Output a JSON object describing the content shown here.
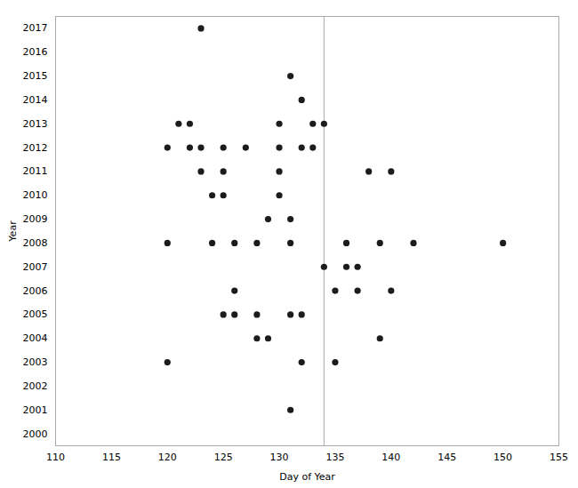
{
  "chart_data": {
    "type": "scatter",
    "x": [
      123,
      131,
      132,
      121,
      122,
      130,
      133,
      134,
      120,
      122,
      123,
      125,
      127,
      130,
      132,
      133,
      123,
      125,
      130,
      138,
      140,
      124,
      125,
      130,
      129,
      131,
      120,
      124,
      126,
      128,
      131,
      136,
      139,
      142,
      150,
      134,
      136,
      137,
      126,
      135,
      137,
      140,
      125,
      126,
      128,
      131,
      132,
      128,
      129,
      139,
      120,
      132,
      135,
      131
    ],
    "values": [
      2017,
      2015,
      2014,
      2013,
      2013,
      2013,
      2013,
      2013,
      2012,
      2012,
      2012,
      2012,
      2012,
      2012,
      2012,
      2012,
      2011,
      2011,
      2011,
      2011,
      2011,
      2010,
      2010,
      2010,
      2009,
      2009,
      2008,
      2008,
      2008,
      2008,
      2008,
      2008,
      2008,
      2008,
      2008,
      2007,
      2007,
      2007,
      2006,
      2006,
      2006,
      2006,
      2005,
      2005,
      2005,
      2005,
      2005,
      2004,
      2004,
      2004,
      2003,
      2003,
      2003,
      2001
    ],
    "color": "#1c1c1c",
    "vline_x": 134,
    "vline_color": "#aaaaaa",
    "xlabel": "Day of Year",
    "ylabel": "Year",
    "xlim": [
      110,
      155
    ],
    "ylim": [
      1999.5,
      2017.5
    ],
    "xticks": [
      110,
      115,
      120,
      125,
      130,
      135,
      140,
      145,
      150,
      155
    ],
    "yticks": [
      2000,
      2001,
      2002,
      2003,
      2004,
      2005,
      2006,
      2007,
      2008,
      2009,
      2010,
      2011,
      2012,
      2013,
      2014,
      2015,
      2016,
      2017
    ],
    "grid": false
  }
}
